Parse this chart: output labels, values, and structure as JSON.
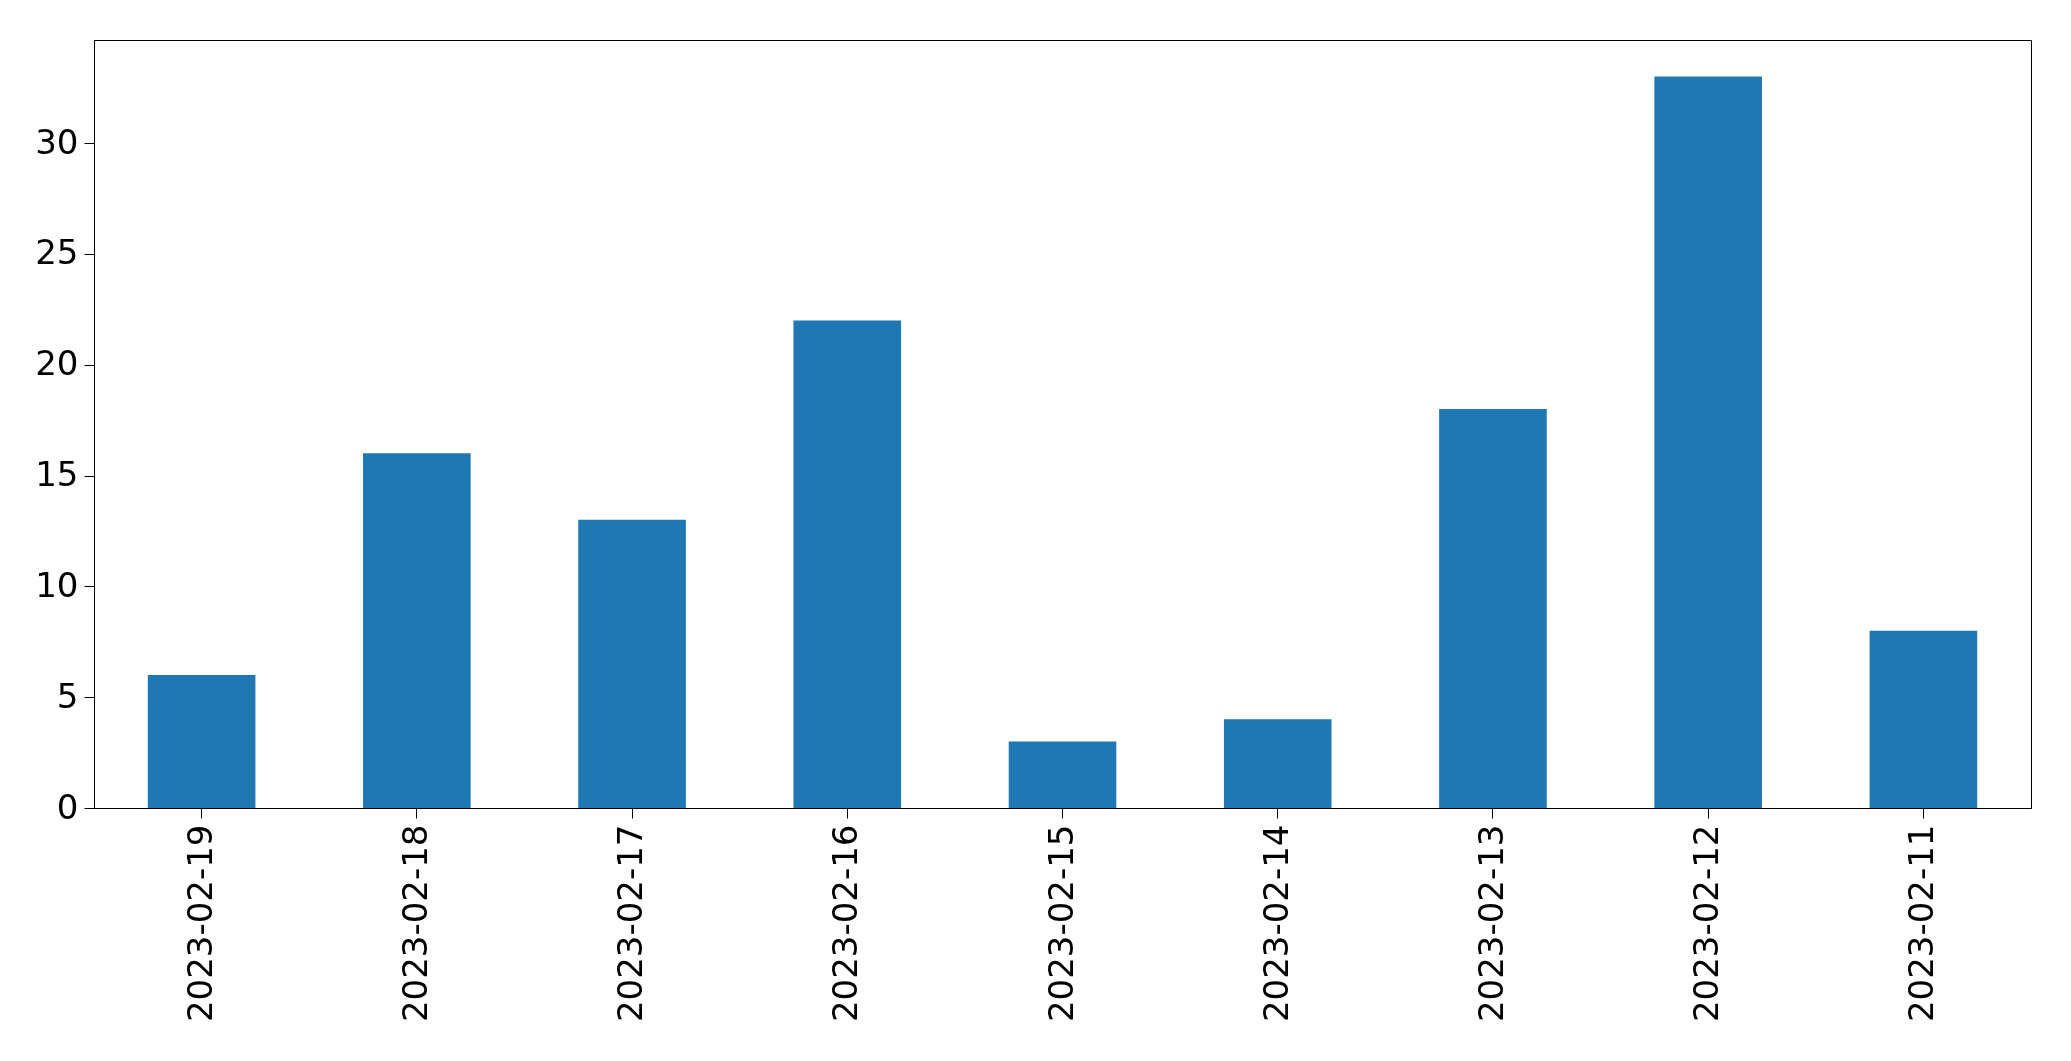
{
  "chart_data": {
    "type": "bar",
    "categories": [
      "2023-02-19",
      "2023-02-18",
      "2023-02-17",
      "2023-02-16",
      "2023-02-15",
      "2023-02-14",
      "2023-02-13",
      "2023-02-12",
      "2023-02-11"
    ],
    "values": [
      6,
      16,
      13,
      22,
      3,
      4,
      18,
      33,
      8
    ],
    "color": "#1f77b4",
    "ylim": [
      0,
      34.65
    ],
    "yticks": [
      0,
      5,
      10,
      15,
      20,
      25,
      30
    ]
  }
}
